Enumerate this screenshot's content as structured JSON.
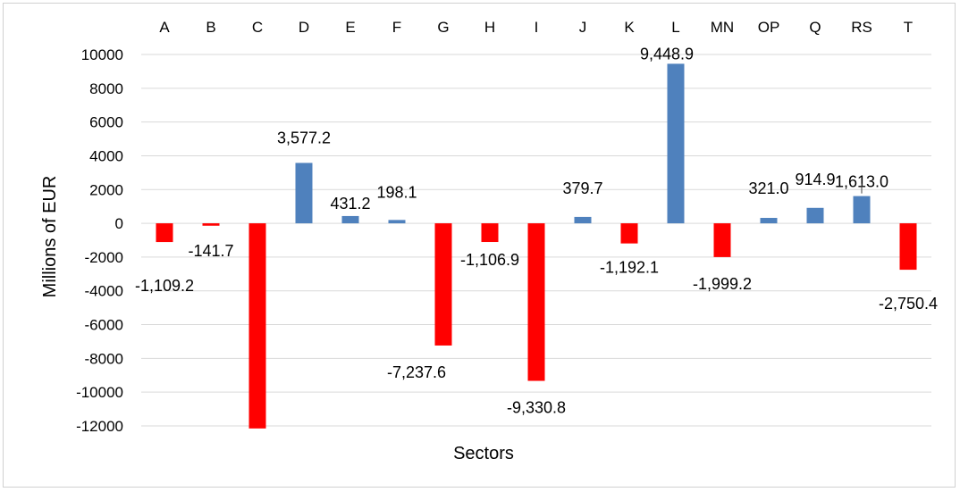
{
  "chart_data": {
    "type": "bar",
    "categories": [
      "A",
      "B",
      "C",
      "D",
      "E",
      "F",
      "G",
      "H",
      "I",
      "J",
      "K",
      "L",
      "MN",
      "OP",
      "Q",
      "RS",
      "T"
    ],
    "values": [
      -1109.2,
      -141.7,
      -12150,
      3577.2,
      431.2,
      198.1,
      -7237.6,
      -1106.9,
      -9330.8,
      379.7,
      -1192.1,
      9448.9,
      -1999.2,
      321.0,
      914.9,
      1613.0,
      -2750.4
    ],
    "data_labels": [
      "-1,109.2",
      "-141.7",
      "",
      "3,577.2",
      "431.2",
      "198.1",
      "-7,237.6",
      "-1,106.9",
      "-9,330.8",
      "379.7",
      "-1,192.1",
      "9,448.9",
      "-1,999.2",
      "321.0",
      "914.9",
      "1,613.0",
      "-2,750.4"
    ],
    "xlabel": "Sectors",
    "ylabel": "Millions of EUR",
    "ylim": [
      -12000,
      10000
    ],
    "yticks": [
      "10000",
      "8000",
      "6000",
      "4000",
      "2000",
      "0",
      "-2000",
      "-4000",
      "-6000",
      "-8000",
      "-10000",
      "-12000"
    ],
    "category_axis_position": "top",
    "grid": true,
    "colors": {
      "positive": "#4F81BD",
      "negative": "#FF0000",
      "grid": "#d9d9d9"
    }
  }
}
